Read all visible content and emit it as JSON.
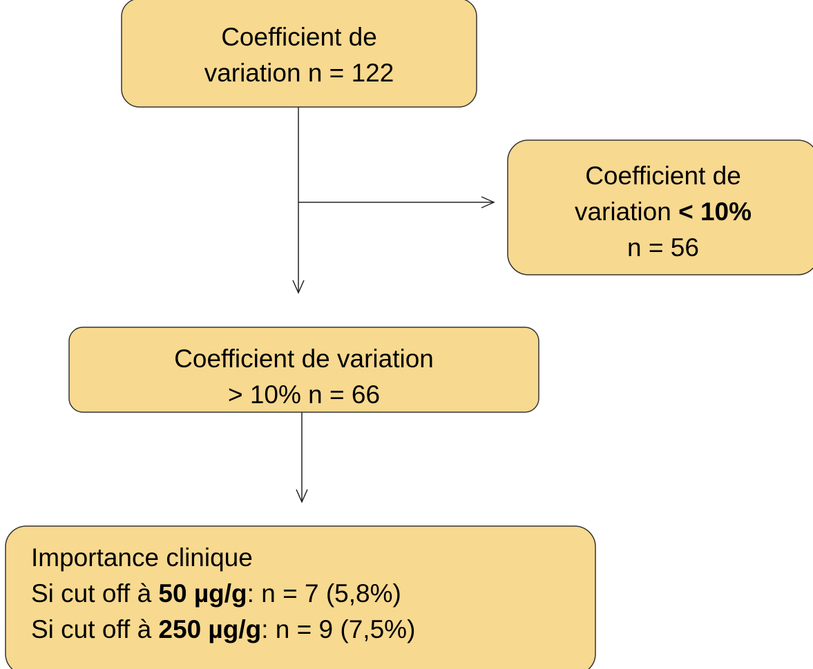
{
  "nodes": [
    {
      "lines": [
        [
          {
            "text": "Coefficient de"
          }
        ],
        [
          {
            "text": "variation n = 122"
          }
        ]
      ]
    },
    {
      "lines": [
        [
          {
            "text": "Coefficient de"
          }
        ],
        [
          {
            "text": "variation "
          },
          {
            "text": "< 10%",
            "bold": true
          }
        ],
        [
          {
            "text": "n = 56"
          }
        ]
      ]
    },
    {
      "lines": [
        [
          {
            "text": "Coefficient de variation"
          }
        ],
        [
          {
            "text": "> 10% n = 66"
          }
        ]
      ]
    },
    {
      "lines": [
        [
          {
            "text": "Importance clinique"
          }
        ],
        [
          {
            "text": "Si cut off à "
          },
          {
            "text": "50 µg/g",
            "bold": true
          },
          {
            "text": ": n = 7 (5,8%)"
          }
        ],
        [
          {
            "text": "Si cut off à "
          },
          {
            "text": "250 µg/g",
            "bold": true
          },
          {
            "text": ": n = 9 (7,5%)"
          }
        ]
      ]
    }
  ]
}
